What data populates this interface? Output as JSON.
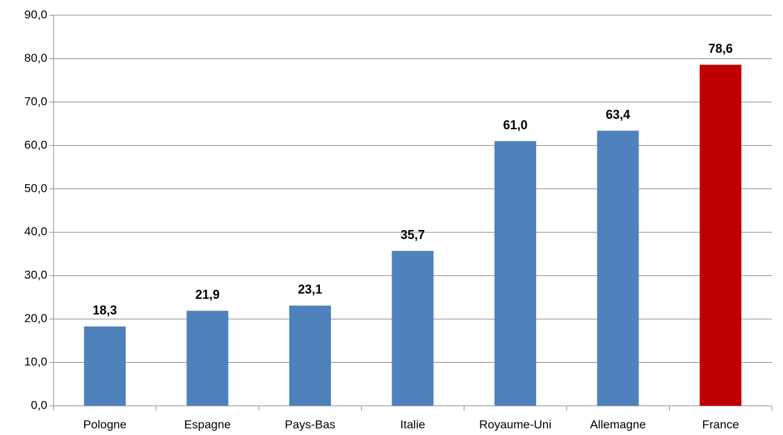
{
  "chart_data": {
    "type": "bar",
    "categories": [
      "Pologne",
      "Espagne",
      "Pays-Bas",
      "Italie",
      "Royaume-Uni",
      "Allemagne",
      "France"
    ],
    "values": [
      18.3,
      21.9,
      23.1,
      35.7,
      61.0,
      63.4,
      78.6
    ],
    "value_labels": [
      "18,3",
      "21,9",
      "23,1",
      "35,7",
      "61,0",
      "63,4",
      "78,6"
    ],
    "colors": [
      "#4f81bd",
      "#4f81bd",
      "#4f81bd",
      "#4f81bd",
      "#4f81bd",
      "#4f81bd",
      "#c00000"
    ],
    "ylim": [
      0,
      90
    ],
    "yticks": [
      {
        "value": 0,
        "label": "0,0"
      },
      {
        "value": 10,
        "label": "10,0"
      },
      {
        "value": 20,
        "label": "20,0"
      },
      {
        "value": 30,
        "label": "30,0"
      },
      {
        "value": 40,
        "label": "40,0"
      },
      {
        "value": 50,
        "label": "50,0"
      },
      {
        "value": 60,
        "label": "60,0"
      },
      {
        "value": 70,
        "label": "70,0"
      },
      {
        "value": 80,
        "label": "80,0"
      },
      {
        "value": 90,
        "label": "90,0"
      }
    ],
    "grid": true
  }
}
